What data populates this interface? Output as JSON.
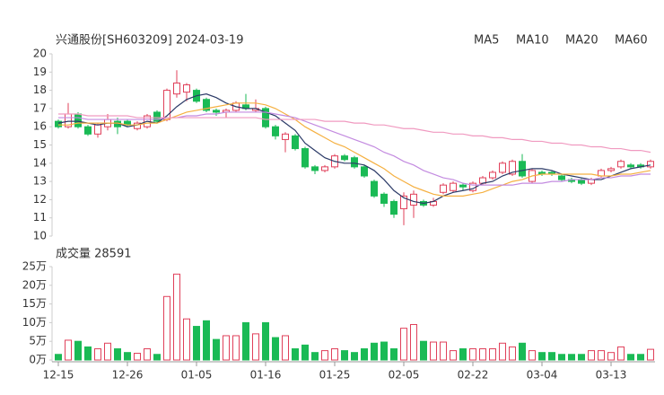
{
  "chart_data": {
    "type": "candlestick",
    "title": "兴通股份[SH603209] 2024-03-19",
    "categories": [
      "12-15",
      null,
      null,
      null,
      null,
      null,
      null,
      "12-26",
      null,
      null,
      null,
      null,
      null,
      null,
      "01-05",
      null,
      null,
      null,
      null,
      null,
      null,
      "01-16",
      null,
      null,
      null,
      null,
      null,
      null,
      "01-25",
      null,
      null,
      null,
      null,
      null,
      null,
      "02-05",
      null,
      null,
      null,
      null,
      null,
      null,
      "02-22",
      null,
      null,
      null,
      null,
      null,
      null,
      "03-04",
      null,
      null,
      null,
      null,
      null,
      null,
      "03-13",
      null,
      null,
      null,
      null
    ],
    "open": [
      16.3,
      16.0,
      16.7,
      16.0,
      15.6,
      16.0,
      16.3,
      16.3,
      15.9,
      16.0,
      16.8,
      16.4,
      17.8,
      17.9,
      18.0,
      17.5,
      16.9,
      16.8,
      16.9,
      17.2,
      16.9,
      17.0,
      16.0,
      15.3,
      15.5,
      14.8,
      13.8,
      13.6,
      13.8,
      14.4,
      14.3,
      13.8,
      13.0,
      12.3,
      11.9,
      11.5,
      11.7,
      11.9,
      11.7,
      12.4,
      12.5,
      12.8,
      12.5,
      12.9,
      13.2,
      13.5,
      13.4,
      14.1,
      13.0,
      13.5,
      13.5,
      13.3,
      13.1,
      13.1,
      12.9,
      13.3,
      13.6,
      13.8,
      13.9,
      13.9,
      13.8
    ],
    "high": [
      16.4,
      17.3,
      16.8,
      16.1,
      16.2,
      16.7,
      16.5,
      16.4,
      16.3,
      16.7,
      16.9,
      18.1,
      19.1,
      18.4,
      18.1,
      17.6,
      17.0,
      17.0,
      17.4,
      17.8,
      17.5,
      17.1,
      16.1,
      15.7,
      15.6,
      14.9,
      13.9,
      13.9,
      14.5,
      14.5,
      14.4,
      13.9,
      13.1,
      12.4,
      12.0,
      12.4,
      12.5,
      12.0,
      12.1,
      12.9,
      13.0,
      12.9,
      13.0,
      13.3,
      13.6,
      14.1,
      14.2,
      14.5,
      13.7,
      13.6,
      13.6,
      13.4,
      13.2,
      13.2,
      13.2,
      13.7,
      13.8,
      14.2,
      14.0,
      14.0,
      14.2
    ],
    "low": [
      15.9,
      15.9,
      15.9,
      15.5,
      15.4,
      15.8,
      15.6,
      16.0,
      15.8,
      15.9,
      16.2,
      16.3,
      17.6,
      17.4,
      17.3,
      16.8,
      16.6,
      16.5,
      16.8,
      16.9,
      16.8,
      15.9,
      15.3,
      14.6,
      14.7,
      13.7,
      13.4,
      13.5,
      13.7,
      14.1,
      13.7,
      13.2,
      12.1,
      11.6,
      11.0,
      10.6,
      11.0,
      11.6,
      11.6,
      12.3,
      12.4,
      12.5,
      12.4,
      12.8,
      13.1,
      13.4,
      13.3,
      13.2,
      12.9,
      13.3,
      13.3,
      13.0,
      12.9,
      12.8,
      12.8,
      13.2,
      13.5,
      13.7,
      13.7,
      13.7,
      13.7
    ],
    "close": [
      16.0,
      16.7,
      16.0,
      15.6,
      16.1,
      16.4,
      16.0,
      16.1,
      16.2,
      16.6,
      16.3,
      18.0,
      18.4,
      18.3,
      17.4,
      16.9,
      16.8,
      16.9,
      17.3,
      17.0,
      17.0,
      16.0,
      15.5,
      15.6,
      14.8,
      13.8,
      13.6,
      13.8,
      14.4,
      14.2,
      13.8,
      13.3,
      12.2,
      11.8,
      11.2,
      12.2,
      12.3,
      11.7,
      11.9,
      12.8,
      12.9,
      12.7,
      12.9,
      13.2,
      13.5,
      14.0,
      14.1,
      13.3,
      13.6,
      13.4,
      13.4,
      13.1,
      13.0,
      12.9,
      13.1,
      13.6,
      13.7,
      14.1,
      13.8,
      13.8,
      14.1
    ],
    "up_color": "#e0405a",
    "down_color": "#1aba55",
    "ylim": [
      10,
      20
    ],
    "yticks": [
      10,
      11,
      12,
      13,
      14,
      15,
      16,
      17,
      18,
      19,
      20
    ],
    "series": [
      {
        "name": "MA5",
        "color": "#2b3a67",
        "values": [
          16.2,
          16.3,
          16.3,
          16.2,
          16.1,
          16.2,
          16.2,
          16.0,
          16.1,
          16.3,
          16.2,
          16.6,
          17.1,
          17.5,
          17.7,
          17.8,
          17.6,
          17.3,
          17.1,
          17.0,
          17.0,
          16.8,
          16.6,
          16.2,
          15.8,
          15.1,
          14.7,
          14.3,
          14.1,
          14.0,
          14.0,
          13.9,
          13.6,
          13.1,
          12.5,
          12.1,
          11.9,
          11.8,
          11.9,
          12.2,
          12.4,
          12.5,
          12.6,
          12.9,
          13.0,
          13.3,
          13.5,
          13.6,
          13.7,
          13.7,
          13.6,
          13.4,
          13.3,
          13.2,
          13.1,
          13.1,
          13.3,
          13.5,
          13.7,
          13.8,
          13.9
        ]
      },
      {
        "name": "MA10",
        "color": "#f5b041",
        "values": [
          16.1,
          16.1,
          16.2,
          16.2,
          16.2,
          16.2,
          16.2,
          16.1,
          16.1,
          16.2,
          16.2,
          16.4,
          16.6,
          16.8,
          16.9,
          17.0,
          17.1,
          17.2,
          17.3,
          17.3,
          17.3,
          17.2,
          17.0,
          16.7,
          16.4,
          16.0,
          15.7,
          15.4,
          15.1,
          14.9,
          14.6,
          14.3,
          14.0,
          13.7,
          13.3,
          13.0,
          12.7,
          12.5,
          12.3,
          12.2,
          12.2,
          12.2,
          12.3,
          12.4,
          12.6,
          12.8,
          13.0,
          13.1,
          13.3,
          13.4,
          13.4,
          13.4,
          13.4,
          13.4,
          13.4,
          13.3,
          13.3,
          13.4,
          13.4,
          13.5,
          13.6
        ]
      },
      {
        "name": "MA20",
        "color": "#c38be0",
        "values": [
          16.5,
          16.5,
          16.5,
          16.4,
          16.4,
          16.4,
          16.4,
          16.4,
          16.4,
          16.4,
          16.4,
          16.5,
          16.5,
          16.6,
          16.6,
          16.7,
          16.7,
          16.8,
          16.8,
          16.8,
          16.8,
          16.8,
          16.7,
          16.6,
          16.5,
          16.3,
          16.1,
          15.9,
          15.7,
          15.5,
          15.3,
          15.1,
          14.9,
          14.6,
          14.4,
          14.1,
          13.9,
          13.6,
          13.4,
          13.2,
          13.1,
          12.9,
          12.8,
          12.8,
          12.8,
          12.8,
          12.8,
          12.9,
          12.9,
          12.9,
          13.0,
          13.0,
          13.1,
          13.1,
          13.1,
          13.2,
          13.2,
          13.3,
          13.3,
          13.4,
          13.4
        ]
      },
      {
        "name": "MA60",
        "color": "#f09ac0",
        "values": [
          16.7,
          16.7,
          16.7,
          16.6,
          16.6,
          16.6,
          16.6,
          16.6,
          16.5,
          16.5,
          16.5,
          16.5,
          16.5,
          16.5,
          16.5,
          16.5,
          16.5,
          16.5,
          16.5,
          16.5,
          16.5,
          16.4,
          16.4,
          16.4,
          16.4,
          16.4,
          16.4,
          16.3,
          16.3,
          16.3,
          16.2,
          16.2,
          16.1,
          16.1,
          16.0,
          15.9,
          15.9,
          15.8,
          15.7,
          15.7,
          15.6,
          15.6,
          15.5,
          15.5,
          15.4,
          15.4,
          15.3,
          15.3,
          15.2,
          15.2,
          15.1,
          15.1,
          15.0,
          15.0,
          14.9,
          14.9,
          14.8,
          14.8,
          14.7,
          14.7,
          14.6
        ]
      }
    ],
    "volume": {
      "type": "bar",
      "label": "成交量 28591",
      "values": [
        1.5,
        5.3,
        5.0,
        3.5,
        3.0,
        4.5,
        3.0,
        2.0,
        1.8,
        3.0,
        1.5,
        17.0,
        23.0,
        11.0,
        9.0,
        10.5,
        5.5,
        6.5,
        6.5,
        10.0,
        7.0,
        10.0,
        6.0,
        6.5,
        3.0,
        4.0,
        2.0,
        2.5,
        3.0,
        2.5,
        2.0,
        3.0,
        4.5,
        4.8,
        3.0,
        8.5,
        9.5,
        5.0,
        4.8,
        4.8,
        2.5,
        3.0,
        3.0,
        3.0,
        3.0,
        4.5,
        3.5,
        4.5,
        2.5,
        2.0,
        2.0,
        1.5,
        1.5,
        1.5,
        2.5,
        2.5,
        2.0,
        3.5,
        1.5,
        1.5,
        2.8591
      ],
      "ylim": [
        0,
        25
      ],
      "yticks": [
        {
          "value": 0,
          "label": "0万"
        },
        {
          "value": 5,
          "label": "5万"
        },
        {
          "value": 10,
          "label": "10万"
        },
        {
          "value": 15,
          "label": "15万"
        },
        {
          "value": 20,
          "label": "20万"
        },
        {
          "value": 25,
          "label": "25万"
        }
      ]
    }
  }
}
